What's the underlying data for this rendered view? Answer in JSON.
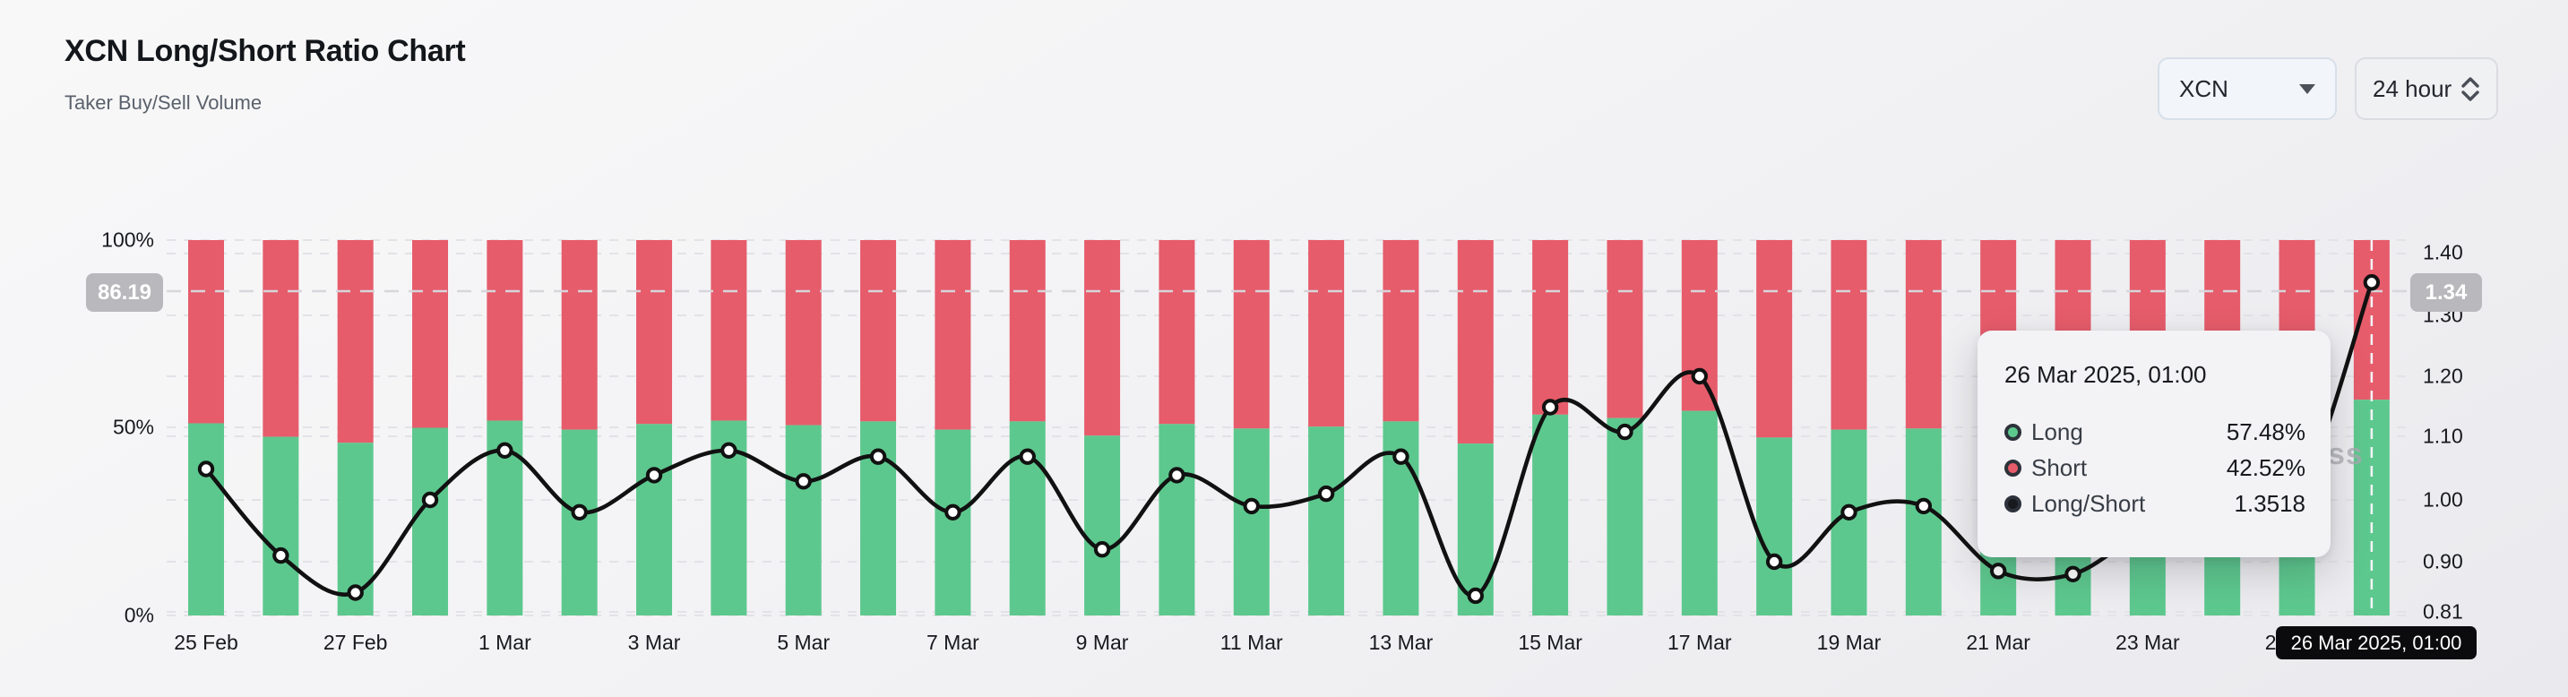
{
  "header": {
    "title": "XCN Long/Short Ratio Chart",
    "subtitle": "Taker Buy/Sell Volume"
  },
  "controls": {
    "symbol_select": {
      "value": "XCN"
    },
    "interval_select": {
      "value": "24 hour"
    }
  },
  "chart_data": {
    "type": "bar",
    "subtype": "stacked-bars-with-line",
    "title": "XCN Long/Short Ratio Chart",
    "categories": [
      "25 Feb",
      "26 Feb",
      "27 Feb",
      "28 Feb",
      "1 Mar",
      "2 Mar",
      "3 Mar",
      "4 Mar",
      "5 Mar",
      "6 Mar",
      "7 Mar",
      "8 Mar",
      "9 Mar",
      "10 Mar",
      "11 Mar",
      "12 Mar",
      "13 Mar",
      "14 Mar",
      "15 Mar",
      "16 Mar",
      "17 Mar",
      "18 Mar",
      "19 Mar",
      "20 Mar",
      "21 Mar",
      "22 Mar",
      "23 Mar",
      "24 Mar",
      "25 Mar",
      "26 Mar"
    ],
    "series": [
      {
        "name": "Long",
        "type": "bar",
        "unit": "%",
        "color": "#5dc88e",
        "values": [
          51.2,
          47.6,
          46.0,
          50.0,
          51.9,
          49.5,
          51.0,
          51.9,
          50.7,
          51.7,
          49.5,
          51.7,
          47.9,
          51.0,
          49.8,
          50.3,
          51.7,
          45.8,
          53.5,
          52.6,
          54.5,
          47.4,
          49.5,
          49.8,
          47.0,
          46.8,
          48.7,
          49.2,
          50.0,
          57.48
        ]
      },
      {
        "name": "Short",
        "type": "bar",
        "unit": "%",
        "color": "#e65c6b",
        "values": [
          48.8,
          52.4,
          54.0,
          50.0,
          48.1,
          50.5,
          49.0,
          48.1,
          49.3,
          48.3,
          50.5,
          48.3,
          52.1,
          49.0,
          50.2,
          49.7,
          48.3,
          54.2,
          46.5,
          47.4,
          45.5,
          52.6,
          50.5,
          50.2,
          53.0,
          53.2,
          51.3,
          50.8,
          50.0,
          42.52
        ]
      },
      {
        "name": "Long/Short",
        "type": "line",
        "color": "#111111",
        "values": [
          1.05,
          0.91,
          0.85,
          1.0,
          1.08,
          0.98,
          1.04,
          1.08,
          1.03,
          1.07,
          0.98,
          1.07,
          0.92,
          1.04,
          0.99,
          1.01,
          1.07,
          0.845,
          1.15,
          1.11,
          1.2,
          0.9,
          0.98,
          0.99,
          0.885,
          0.88,
          0.95,
          0.97,
          1.0,
          1.3518
        ]
      }
    ],
    "left_axis": {
      "tick_labels": [
        "100%",
        "50%",
        "0%"
      ],
      "range": [
        0,
        100
      ]
    },
    "right_axis": {
      "tick_labels": [
        "1.40",
        "1.30",
        "1.20",
        "1.10",
        "1.00",
        "0.90",
        "0.81"
      ],
      "tick_values": [
        1.4,
        1.3,
        1.2,
        1.1,
        1.0,
        0.9,
        0.81
      ],
      "range": [
        0.81,
        1.4
      ]
    },
    "x_axis": {
      "tick_labels": [
        "25 Feb",
        "27 Feb",
        "1 Mar",
        "3 Mar",
        "5 Mar",
        "7 Mar",
        "9 Mar",
        "11 Mar",
        "13 Mar",
        "15 Mar",
        "17 Mar",
        "19 Mar",
        "21 Mar",
        "23 Mar",
        "25 Mar"
      ]
    },
    "grid": "dashed-horizontal",
    "legend_position": "none"
  },
  "crosshair": {
    "left_value": "86.19",
    "right_value": "1.34",
    "x_value": "26 Mar 2025, 01:00"
  },
  "tooltip": {
    "title": "26 Mar 2025, 01:00",
    "rows": [
      {
        "label": "Long",
        "value": "57.48%",
        "color": "#5dc88e"
      },
      {
        "label": "Short",
        "value": "42.52%",
        "color": "#e65c6b"
      },
      {
        "label": "Long/Short",
        "value": "1.3518",
        "color": "#17191d"
      }
    ]
  },
  "watermark": "ss"
}
